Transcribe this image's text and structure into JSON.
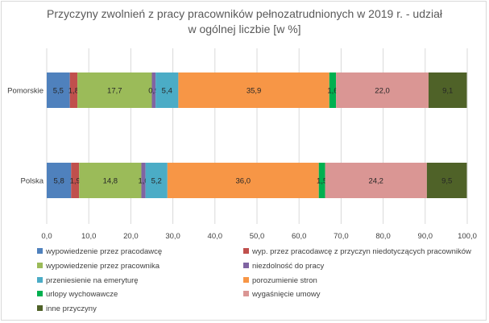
{
  "chart_data": {
    "type": "bar",
    "orientation": "horizontal",
    "stacked": true,
    "title_line1": "Przyczyny zwolnień z pracy pracowników pełnozatrudnionych w 2019 r. - udział",
    "title_line2": "w ogólnej liczbie [w %]",
    "categories": [
      "Pomorskie",
      "Polska"
    ],
    "xlim": [
      0,
      100
    ],
    "xticks": [
      "0,0",
      "10,0",
      "20,0",
      "30,0",
      "40,0",
      "50,0",
      "60,0",
      "70,0",
      "80,0",
      "90,0",
      "100,0"
    ],
    "grid": true,
    "legend_position": "bottom",
    "series": [
      {
        "name": "wypowiedzenie przez pracodawcę",
        "color": "#4f81bd",
        "values": [
          5.5,
          5.8
        ],
        "labels": [
          "5,5",
          "5,8"
        ]
      },
      {
        "name": "wyp. przez pracodawcę z przyczyn niedotyczących pracowników",
        "color": "#c0504d",
        "values": [
          1.8,
          1.9
        ],
        "labels": [
          "1,8",
          "1,9"
        ]
      },
      {
        "name": "wypowiedzenie przez pracownika",
        "color": "#9bbb59",
        "values": [
          17.7,
          14.8
        ],
        "labels": [
          "17,7",
          "14,8"
        ]
      },
      {
        "name": "niezdolność do pracy",
        "color": "#8064a2",
        "values": [
          0.9,
          1.0
        ],
        "labels": [
          "0,9",
          "1,0"
        ]
      },
      {
        "name": "przeniesienie na emeryturę",
        "color": "#4bacc6",
        "values": [
          5.4,
          5.2
        ],
        "labels": [
          "5,4",
          "5,2"
        ]
      },
      {
        "name": "porozumienie stron",
        "color": "#f79646",
        "values": [
          35.9,
          36.0
        ],
        "labels": [
          "35,9",
          "36,0"
        ]
      },
      {
        "name": "urlopy wychowawcze",
        "color": "#00b050",
        "values": [
          1.6,
          1.5
        ],
        "labels": [
          "1,6",
          "1,5"
        ]
      },
      {
        "name": "wygaśnięcie umowy",
        "color": "#da9694",
        "values": [
          22.0,
          24.2
        ],
        "labels": [
          "22,0",
          "24,2"
        ]
      },
      {
        "name": "inne przyczyny",
        "color": "#4f6228",
        "values": [
          9.1,
          9.5
        ],
        "labels": [
          "9,1",
          "9,5"
        ]
      }
    ]
  }
}
